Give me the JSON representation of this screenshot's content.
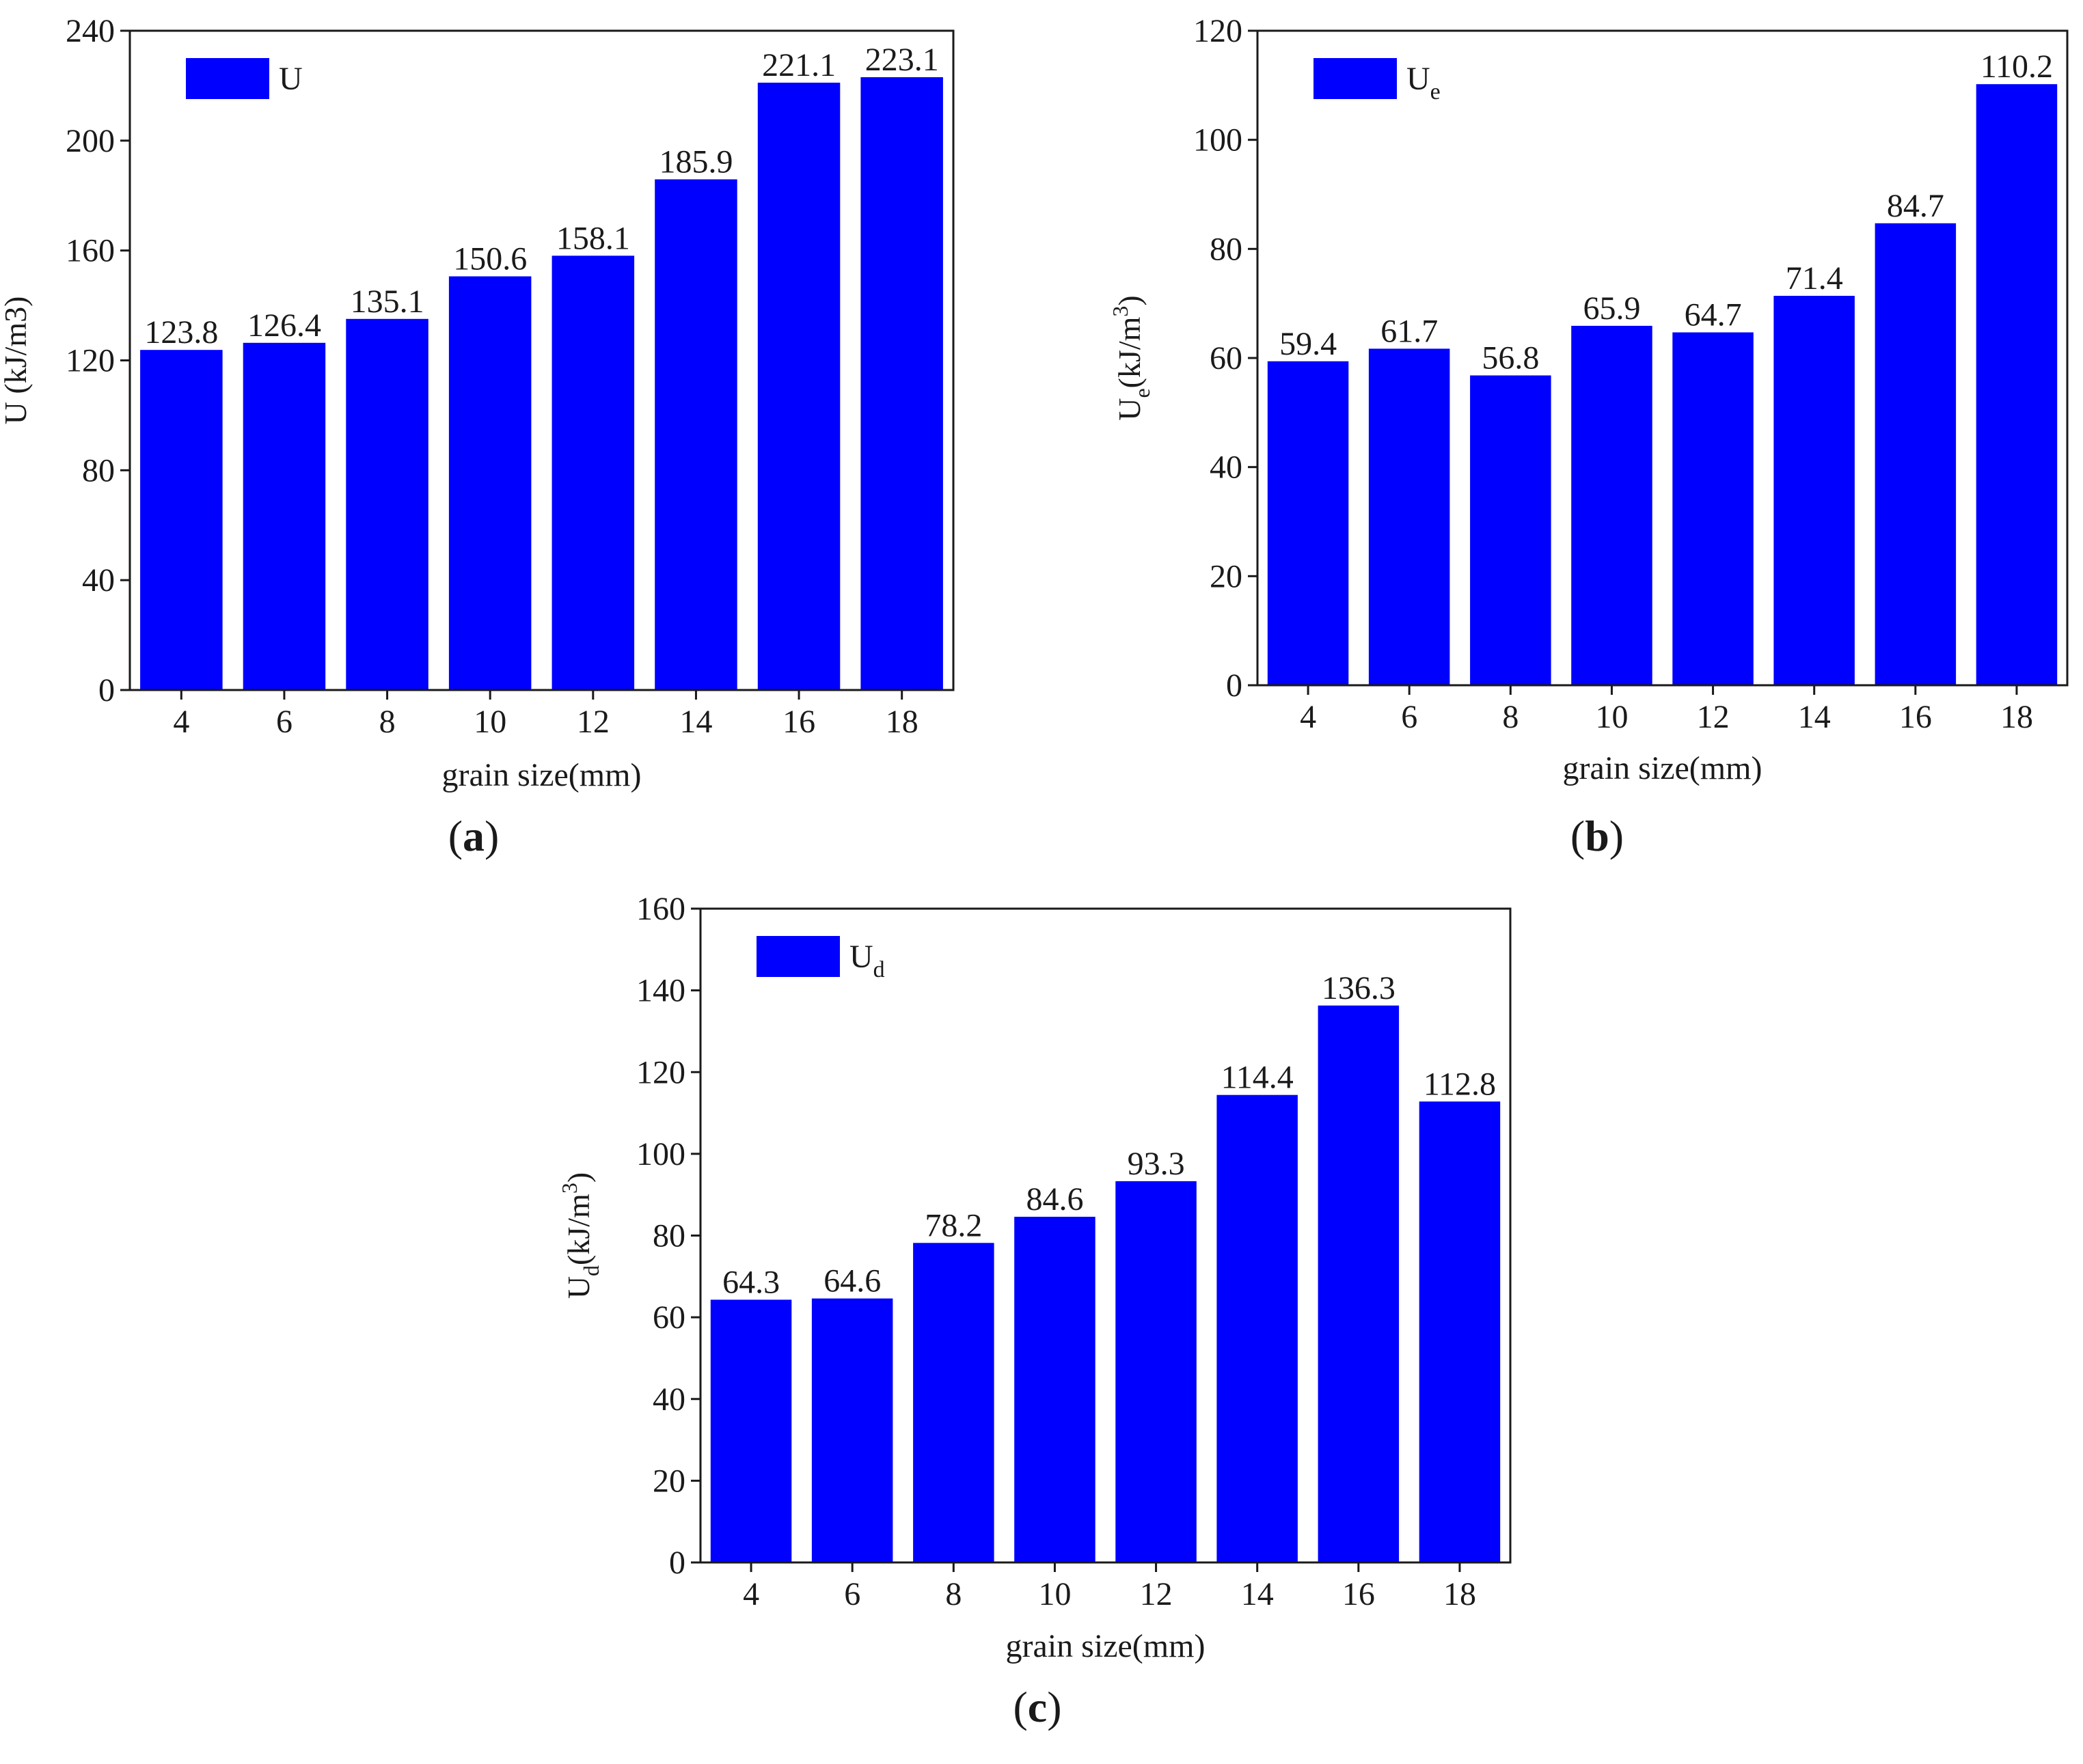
{
  "figure": {
    "chart_data": [
      {
        "type": "bar",
        "panel": "(a)",
        "panel_letter": "a",
        "title": "",
        "categories": [
          "4",
          "6",
          "8",
          "10",
          "12",
          "14",
          "16",
          "18"
        ],
        "values": [
          123.8,
          126.4,
          135.1,
          150.6,
          158.1,
          185.9,
          221.1,
          223.1
        ],
        "data_labels": [
          "123.8",
          "126.4",
          "135.1",
          "150.6",
          "158.1",
          "185.9",
          "221.1",
          "223.1"
        ],
        "xlabel": "grain size(mm)",
        "ylabel": "U (kJ/m3)",
        "ylabel_main": "U (kJ/m3)",
        "ylabel_sub": "",
        "ylabel_rest": "",
        "ylabel_sup": "",
        "ylabel_close": "",
        "ylim": [
          0,
          240
        ],
        "yticks": [
          0,
          40,
          80,
          120,
          160,
          200,
          240
        ],
        "legend": {
          "label": "U",
          "label_sub": "",
          "position": "top-left"
        },
        "grid": false,
        "bar_color": "#0000ff"
      },
      {
        "type": "bar",
        "panel": "(b)",
        "panel_letter": "b",
        "title": "",
        "categories": [
          "4",
          "6",
          "8",
          "10",
          "12",
          "14",
          "16",
          "18"
        ],
        "values": [
          59.4,
          61.7,
          56.8,
          65.9,
          64.7,
          71.4,
          84.7,
          110.2
        ],
        "data_labels": [
          "59.4",
          "61.7",
          "56.8",
          "65.9",
          "64.7",
          "71.4",
          "84.7",
          "110.2"
        ],
        "xlabel": "grain size(mm)",
        "ylabel": "Ue(kJ/m3)",
        "ylabel_main": "U",
        "ylabel_sub": "e",
        "ylabel_rest": "(kJ/m",
        "ylabel_sup": "3",
        "ylabel_close": ")",
        "ylim": [
          0,
          120
        ],
        "yticks": [
          0,
          20,
          40,
          60,
          80,
          100,
          120
        ],
        "legend": {
          "label": "U",
          "label_sub": "e",
          "position": "top-left"
        },
        "grid": false,
        "bar_color": "#0000ff"
      },
      {
        "type": "bar",
        "panel": "(c)",
        "panel_letter": "c",
        "title": "",
        "categories": [
          "4",
          "6",
          "8",
          "10",
          "12",
          "14",
          "16",
          "18"
        ],
        "values": [
          64.3,
          64.6,
          78.2,
          84.6,
          93.3,
          114.4,
          136.3,
          112.8
        ],
        "data_labels": [
          "64.3",
          "64.6",
          "78.2",
          "84.6",
          "93.3",
          "114.4",
          "136.3",
          "112.8"
        ],
        "xlabel": "grain size(mm)",
        "ylabel": "Ud(kJ/m3)",
        "ylabel_main": "U",
        "ylabel_sub": "d",
        "ylabel_rest": "(kJ/m",
        "ylabel_sup": "3",
        "ylabel_close": ")",
        "ylim": [
          0,
          160
        ],
        "yticks": [
          0,
          20,
          40,
          60,
          80,
          100,
          120,
          140,
          160
        ],
        "legend": {
          "label": "U",
          "label_sub": "d",
          "position": "top-left"
        },
        "grid": false,
        "bar_color": "#0000ff"
      }
    ]
  }
}
